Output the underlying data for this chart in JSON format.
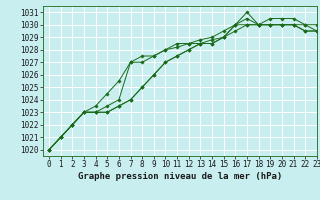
{
  "title": "Graphe pression niveau de la mer (hPa)",
  "bg_color": "#c8eef0",
  "grid_color": "#ffffff",
  "line_color": "#1a6b1a",
  "xlim": [
    -0.5,
    23
  ],
  "ylim": [
    1019.5,
    1031.5
  ],
  "yticks": [
    1020,
    1021,
    1022,
    1023,
    1024,
    1025,
    1026,
    1027,
    1028,
    1029,
    1030,
    1031
  ],
  "xticks": [
    0,
    1,
    2,
    3,
    4,
    5,
    6,
    7,
    8,
    9,
    10,
    11,
    12,
    13,
    14,
    15,
    16,
    17,
    18,
    19,
    20,
    21,
    22,
    23
  ],
  "series": [
    [
      1020.0,
      1021.0,
      1022.0,
      1023.0,
      1023.5,
      1024.5,
      1025.5,
      1027.0,
      1027.5,
      1027.5,
      1028.0,
      1028.2,
      1028.5,
      1028.5,
      1028.5,
      1029.0,
      1030.0,
      1030.5,
      1030.0,
      1030.0,
      1030.0,
      1030.0,
      1030.0,
      1030.0
    ],
    [
      1020.0,
      1021.0,
      1022.0,
      1023.0,
      1023.0,
      1023.5,
      1024.0,
      1027.0,
      1027.0,
      1027.5,
      1028.0,
      1028.5,
      1028.5,
      1028.8,
      1029.0,
      1029.5,
      1030.0,
      1031.0,
      1030.0,
      1030.0,
      1030.0,
      1030.0,
      1029.5,
      1029.5
    ],
    [
      1020.0,
      1021.0,
      1022.0,
      1023.0,
      1023.0,
      1023.0,
      1023.5,
      1024.0,
      1025.0,
      1026.0,
      1027.0,
      1027.5,
      1028.0,
      1028.5,
      1028.5,
      1029.0,
      1030.0,
      1030.0,
      1030.0,
      1030.0,
      1030.0,
      1030.0,
      1029.5,
      1029.5
    ],
    [
      1020.0,
      1021.0,
      1022.0,
      1023.0,
      1023.0,
      1023.0,
      1023.5,
      1024.0,
      1025.0,
      1026.0,
      1027.0,
      1027.5,
      1028.0,
      1028.5,
      1028.8,
      1029.0,
      1029.5,
      1030.0,
      1030.0,
      1030.5,
      1030.5,
      1030.5,
      1030.0,
      1029.5
    ]
  ],
  "title_fontsize": 6.5,
  "tick_fontsize": 5.5
}
